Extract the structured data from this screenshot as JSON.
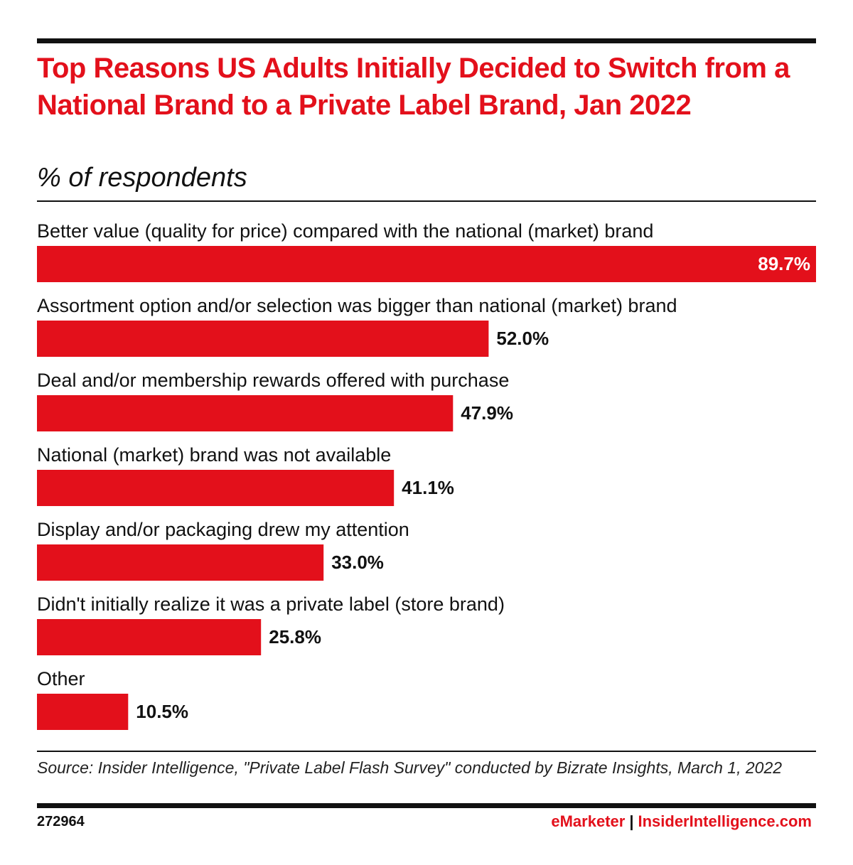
{
  "header": {
    "title": "Top Reasons US Adults Initially Decided to Switch from a National Brand to a Private Label Brand, Jan 2022",
    "subtitle": "% of respondents"
  },
  "colors": {
    "bar": "#e3101b",
    "title": "#e3101b",
    "text": "#111111"
  },
  "chart_data": {
    "type": "bar",
    "orientation": "horizontal",
    "categories": [
      "Better value (quality for price) compared with the national (market) brand",
      "Assortment option and/or selection was bigger than national (market) brand",
      "Deal and/or membership rewards offered with purchase",
      "National (market) brand was not available",
      "Display and/or packaging drew my attention",
      "Didn't initially realize it was a private label (store brand)",
      "Other"
    ],
    "values": [
      89.7,
      52.0,
      47.9,
      41.1,
      33.0,
      25.8,
      10.5
    ],
    "value_labels": [
      "89.7%",
      "52.0%",
      "47.9%",
      "41.1%",
      "33.0%",
      "25.8%",
      "10.5%"
    ],
    "unit": "%",
    "title": "Top Reasons US Adults Initially Decided to Switch from a National Brand to a Private Label Brand, Jan 2022",
    "subtitle": "% of respondents",
    "xlabel": "",
    "ylabel": "",
    "xlim": [
      0,
      89.7
    ],
    "grid": false,
    "legend": "none"
  },
  "footer": {
    "source": "Source: Insider Intelligence, \"Private Label Flash Survey\" conducted by Bizrate Insights, March 1, 2022",
    "chart_id": "272964",
    "brand_emarketer": "eMarketer",
    "brand_separator": "|",
    "brand_insider": "InsiderIntelligence.com"
  }
}
